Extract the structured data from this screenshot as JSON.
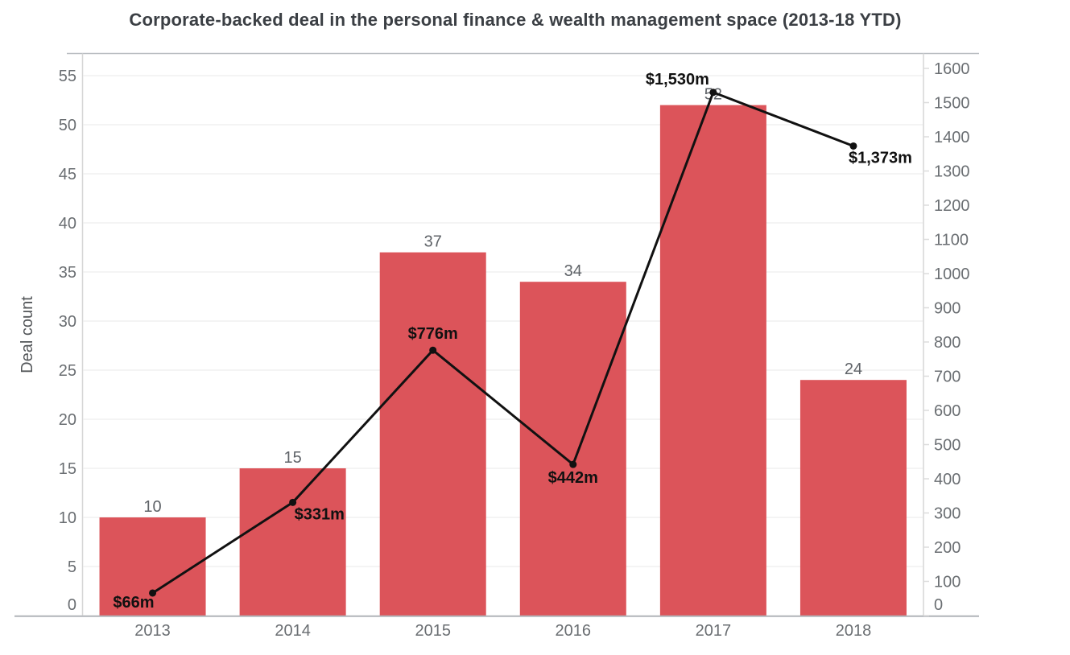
{
  "chart_data": {
    "type": "bar",
    "subtype": "bar+line combo, dual axis",
    "title": "Corporate-backed deal in the personal finance & wealth management space (2013-18 YTD)",
    "categories": [
      "2013",
      "2014",
      "2015",
      "2016",
      "2017",
      "2018"
    ],
    "series": [
      {
        "name": "Deal count",
        "kind": "bar",
        "axis": "left",
        "values": [
          10,
          15,
          37,
          34,
          52,
          24
        ],
        "labels": [
          "10",
          "15",
          "37",
          "34",
          "52",
          "24"
        ]
      },
      {
        "name": "",
        "kind": "line",
        "axis": "right",
        "values": [
          66,
          331,
          776,
          442,
          1530,
          1373
        ],
        "labels": [
          "$66m",
          "$331m",
          "$776m",
          "$442m",
          "$1,530m",
          "$1,373m"
        ],
        "label_placements": [
          {
            "anchor": "end",
            "dx": 2,
            "dy": 18
          },
          {
            "anchor": "start",
            "dx": 2,
            "dy": 21
          },
          {
            "anchor": "middle",
            "dx": 0,
            "dy": -14
          },
          {
            "anchor": "middle",
            "dx": 0,
            "dy": 23
          },
          {
            "anchor": "end",
            "dx": -5,
            "dy": -10
          },
          {
            "anchor": "start",
            "dx": -6,
            "dy": 21
          }
        ]
      }
    ],
    "left_axis": {
      "title": "Deal count",
      "min": 0,
      "max": 55,
      "ticks": [
        0,
        5,
        10,
        15,
        20,
        25,
        30,
        35,
        40,
        45,
        50,
        55
      ]
    },
    "right_axis": {
      "title": "",
      "min": 0,
      "max": 1600,
      "ticks": [
        0,
        100,
        200,
        300,
        400,
        500,
        600,
        700,
        800,
        900,
        1000,
        1100,
        1200,
        1300,
        1400,
        1500,
        1600
      ]
    },
    "grid": true,
    "legend_position": "none",
    "colors": {
      "bar": "#dc545a",
      "line": "#111111",
      "marker": "#111111",
      "value_label_text": "#111111",
      "count_label_text": "#5f6368",
      "tick_text": "#6a6e72",
      "axis_title_text": "#54575a",
      "title_text": "#3b3f44",
      "grid_line": "#f0f0f0",
      "axis_line": "#d6d6d6",
      "tick_mark": "#dcdcdc",
      "frame_top": "#b9bdc1",
      "frame_bottom": "#b0b4b8",
      "background": "#ffffff"
    }
  }
}
